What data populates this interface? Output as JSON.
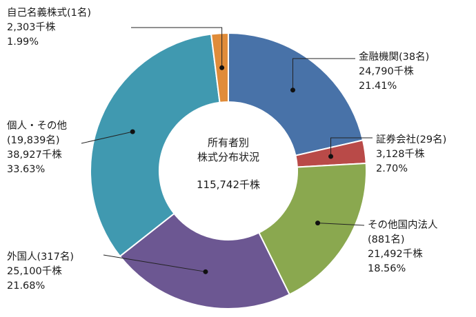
{
  "chart_data": {
    "type": "pie",
    "title_lines": [
      "所有者別",
      "株式分布状況"
    ],
    "total_label": "115,742千株",
    "unit": "千株",
    "colors": [
      "#4872a8",
      "#b94a48",
      "#8aa84f",
      "#6c5792",
      "#4099b0",
      "#e08c3a"
    ],
    "slices": [
      {
        "name": "金融機関",
        "count": "(38名)",
        "shares": "24,790千株",
        "percent": "21.41%",
        "value": 24790,
        "pct": 21.41
      },
      {
        "name": "証券会社",
        "count": "(29名)",
        "shares": "3,128千株",
        "percent": "2.70%",
        "value": 3128,
        "pct": 2.7
      },
      {
        "name": "その他国内法人",
        "count": "(881名)",
        "shares": "21,492千株",
        "percent": "18.56%",
        "value": 21492,
        "pct": 18.56
      },
      {
        "name": "外国人",
        "count": "(317名)",
        "shares": "25,100千株",
        "percent": "21.68%",
        "value": 25100,
        "pct": 21.68
      },
      {
        "name": "個人・その他",
        "count": "(19,839名)",
        "shares": "38,927千株",
        "percent": "33.63%",
        "value": 38927,
        "pct": 33.63
      },
      {
        "name": "自己名義株式",
        "count": "(1名)",
        "shares": "2,303千株",
        "percent": "1.99%",
        "value": 2303,
        "pct": 1.99
      }
    ]
  }
}
